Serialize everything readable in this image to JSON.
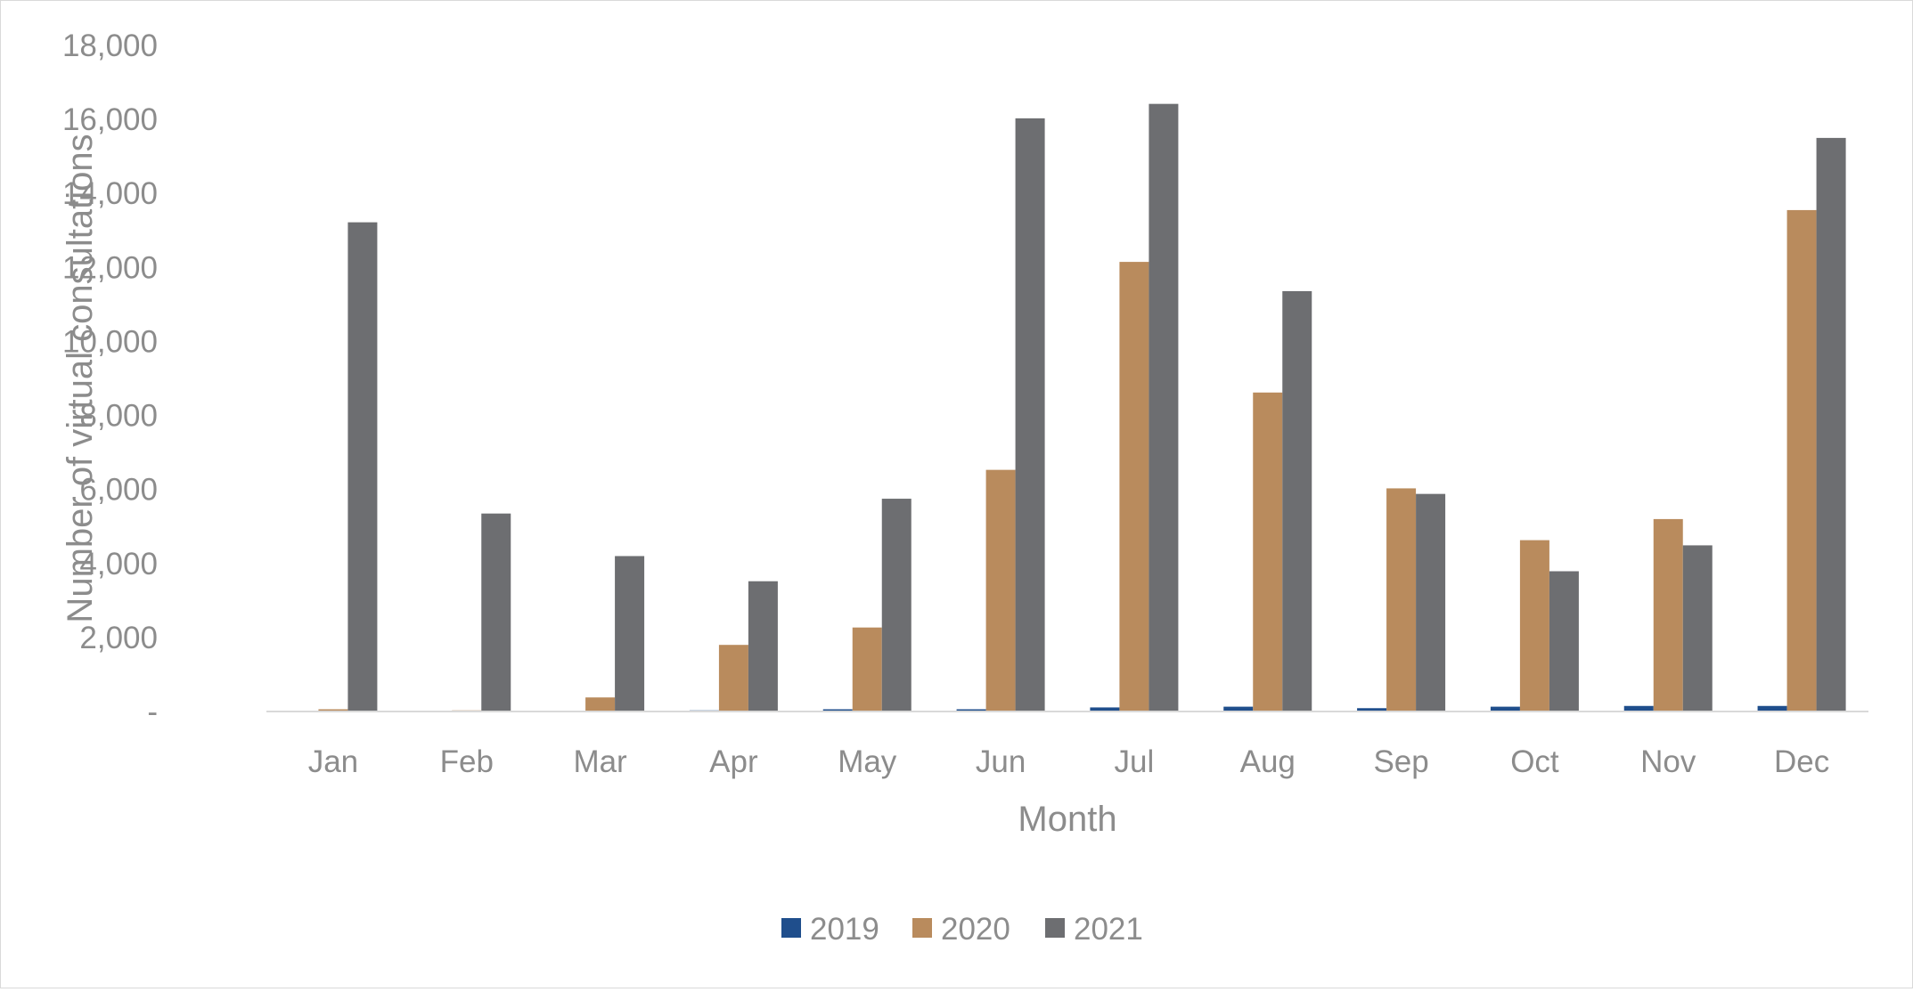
{
  "chart_data": {
    "type": "bar",
    "title": "",
    "xlabel": "Month",
    "ylabel": "Number of virtual consultations",
    "categories": [
      "Jan",
      "Feb",
      "Mar",
      "Apr",
      "May",
      "Jun",
      "Jul",
      "Aug",
      "Sep",
      "Oct",
      "Nov",
      "Dec"
    ],
    "series": [
      {
        "name": "2019",
        "color": "#1f4e8c",
        "values": [
          0,
          0,
          0,
          30,
          60,
          60,
          110,
          130,
          90,
          130,
          150,
          150
        ]
      },
      {
        "name": "2020",
        "color": "#b98b5d",
        "values": [
          60,
          30,
          380,
          1800,
          2270,
          6530,
          12150,
          8620,
          6030,
          4630,
          5200,
          13550
        ]
      },
      {
        "name": "2021",
        "color": "#6d6e71",
        "values": [
          13220,
          5350,
          4200,
          3520,
          5750,
          16030,
          16420,
          11360,
          5880,
          3790,
          4490,
          15500
        ]
      }
    ],
    "ylim": [
      0,
      18000
    ],
    "yticks": [
      0,
      2000,
      4000,
      6000,
      8000,
      10000,
      12000,
      14000,
      16000,
      18000
    ],
    "ytick_labels": [
      "-",
      "2,000",
      "4,000",
      "6,000",
      "8,000",
      "10,000",
      "12,000",
      "14,000",
      "16,000",
      "18,000"
    ],
    "grid": false,
    "legend_position": "bottom"
  },
  "colors": {
    "axis_text": "#8c8c8c",
    "axis_line": "#d9d9d9"
  }
}
